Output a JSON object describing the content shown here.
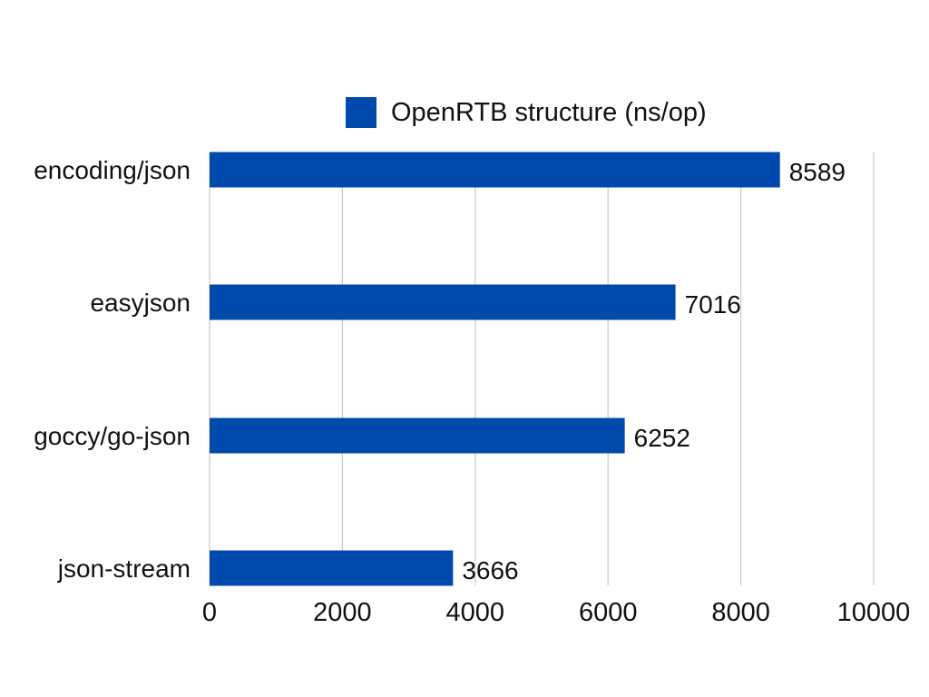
{
  "chart_data": {
    "type": "bar",
    "orientation": "horizontal",
    "categories": [
      "encoding/json",
      "easyjson",
      "goccy/go-json",
      "json-stream"
    ],
    "series": [
      {
        "name": "OpenRTB structure (ns/op)",
        "values": [
          8589,
          7016,
          6252,
          3666
        ],
        "color": "#004AAD"
      }
    ],
    "xlim": [
      0,
      10000
    ],
    "x_ticks": [
      0,
      2000,
      4000,
      6000,
      8000,
      10000
    ],
    "data_labels": true,
    "grid": "vertical",
    "legend": "top-center",
    "gridline_color": "#C9C9C9",
    "text_color": "#111111"
  }
}
